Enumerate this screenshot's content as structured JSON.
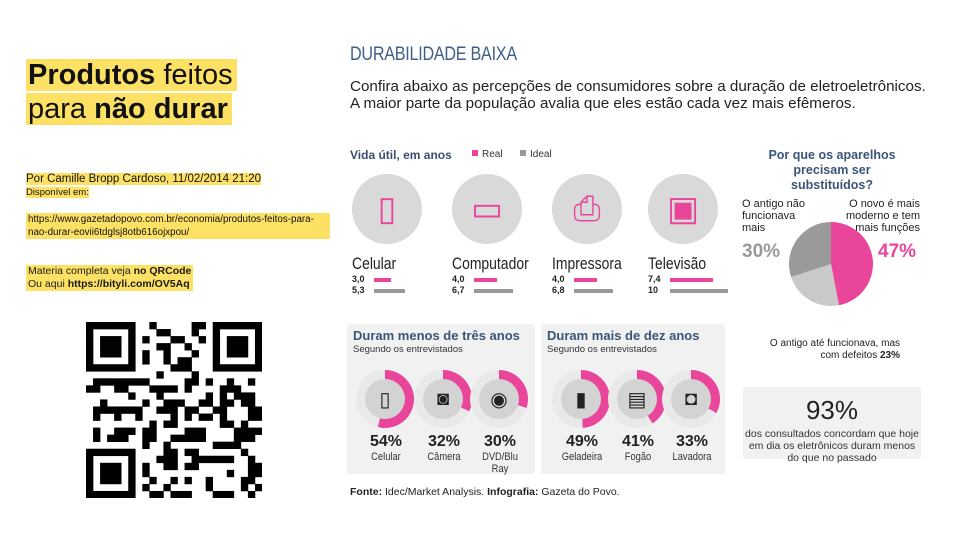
{
  "left": {
    "title_bold1": "Produtos",
    "title_rest1": " feitos",
    "title_rest2": "para ",
    "title_bold2": "não durar",
    "author_line": "Por Camille Bropp Cardoso, 11/02/2014 21:20",
    "available": "Disponível em:",
    "url": "https://www.gazetadopovo.com.br/economia/produtos-feitos-para-nao-durar-eovii6tdglsj8otb616ojxpou/",
    "more_prefix": "Materia completa veja ",
    "more_bold": "no QRCode",
    "alt_prefix": "Ou aqui ",
    "alt_link": "https://bityli.com/OV5Aq"
  },
  "infographic": {
    "title": "DURABILIDADE BAIXA",
    "intro": "Confira abaixo as percepções de consumidores sobre a duração de eletroeletrônicos. A maior parte da população avalia que eles estão cada vez mais efêmeros.",
    "vida_label": "Vida útil, em anos",
    "legend_real": "Real",
    "legend_ideal": "Ideal",
    "colors": {
      "pink": "#e8459b",
      "gray": "#999999",
      "blue": "#3a5575"
    },
    "devices": [
      {
        "name": "Celular",
        "icon": "mobile-phone-icon",
        "real": "3,0",
        "ideal": "5,3",
        "real_val": 3.0,
        "ideal_val": 5.3
      },
      {
        "name": "Computador",
        "icon": "computer-icon",
        "real": "4,0",
        "ideal": "6,7",
        "real_val": 4.0,
        "ideal_val": 6.7
      },
      {
        "name": "Impressora",
        "icon": "printer-icon",
        "real": "4,0",
        "ideal": "6,8",
        "real_val": 4.0,
        "ideal_val": 6.8
      },
      {
        "name": "Televisão",
        "icon": "television-icon",
        "real": "7,4",
        "ideal": "10",
        "real_val": 7.4,
        "ideal_val": 10
      }
    ],
    "short_panel": {
      "heading": "Duram menos de três anos",
      "sub": "Segundo os entrevistados",
      "items": [
        {
          "pct": "54%",
          "label": "Celular",
          "value": 54,
          "icon": "mobile-phone-icon"
        },
        {
          "pct": "32%",
          "label": "Câmera",
          "value": 32,
          "icon": "camera-icon"
        },
        {
          "pct": "30%",
          "label": "DVD/Blu Ray",
          "value": 30,
          "icon": "disc-icon"
        }
      ]
    },
    "long_panel": {
      "heading": "Duram mais de dez anos",
      "sub": "Segundo os entrevistados",
      "items": [
        {
          "pct": "49%",
          "label": "Geladeira",
          "value": 49,
          "icon": "refrigerator-icon"
        },
        {
          "pct": "41%",
          "label": "Fogão",
          "value": 41,
          "icon": "stove-icon"
        },
        {
          "pct": "33%",
          "label": "Lavadora",
          "value": 33,
          "icon": "washing-machine-icon"
        }
      ]
    },
    "why_title": "Por que os aparelhos precisam ser substituídos?",
    "pie": {
      "a_label": "O antigo não funcionava mais",
      "a_pct": "30%",
      "b_label": "O novo é mais moderno e tem mais funções",
      "b_pct": "47%",
      "c_label": "O antigo até funcionava, mas com defeitos",
      "c_pct": "23%",
      "values": [
        47,
        23,
        30
      ]
    },
    "fact_number": "93%",
    "fact_text": "dos consultados concordam que hoje em dia os eletrônicos duram menos do que no passado",
    "fonte_bold1": "Fonte:",
    "fonte_text1": " Idec/Market Analysis. ",
    "fonte_bold2": "Infografia:",
    "fonte_text2": " Gazeta do Povo."
  }
}
